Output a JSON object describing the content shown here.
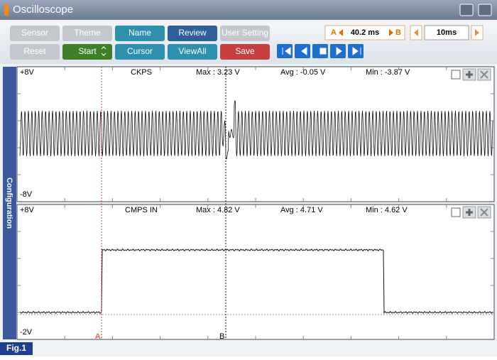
{
  "title": "Oscilloscope",
  "toolbar": {
    "row1": [
      "Sensor",
      "Theme",
      "Name",
      "Review",
      "User Setting"
    ],
    "row2": [
      "Reset",
      "Start",
      "Cursor",
      "ViewAll",
      "Save"
    ]
  },
  "time_readout": {
    "a_label": "A",
    "value": "40.2 ms",
    "b_label": "B"
  },
  "timebase": "10ms",
  "sidebar": "Configuration",
  "panels": [
    {
      "top_label": "+8V",
      "name": "CKPS",
      "max": "Max : 3.23 V",
      "avg": "Avg : -0.05 V",
      "min": "Min : -3.87 V",
      "bottom_label": "-8V"
    },
    {
      "top_label": "+8V",
      "name": "CMPS IN",
      "max": "Max : 4.82 V",
      "avg": "Avg : 4.71 V",
      "min": "Min : 4.62 V",
      "bottom_label": "-2V"
    }
  ],
  "cursors": {
    "a": "A",
    "b": "B"
  },
  "figure_label": "Fig.1"
}
